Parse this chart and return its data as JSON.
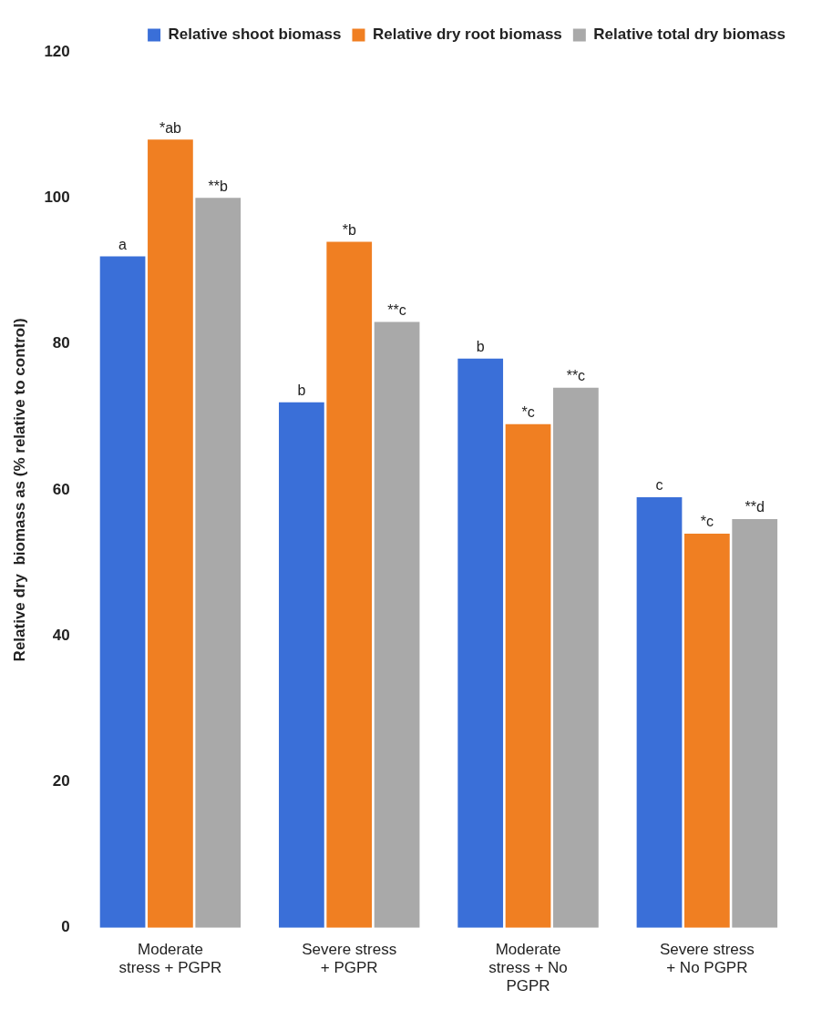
{
  "chart_data": {
    "type": "bar",
    "ylabel": "Relative dry  biomass as (% relative to control)",
    "categories": [
      "Moderate stress + PGPR",
      "Severe stress + PGPR",
      "Moderate stress + No PGPR",
      "Severe stress + No PGPR"
    ],
    "series": [
      {
        "name": "Relative shoot biomass",
        "color": "#3a6fd8",
        "values": [
          92,
          72,
          78,
          59
        ],
        "value_labels": [
          "a",
          "b",
          "b",
          "c"
        ]
      },
      {
        "name": "Relative dry root biomass",
        "color": "#f07f22",
        "values": [
          108,
          94,
          69,
          54
        ],
        "value_labels": [
          "*ab",
          "*b",
          "*c",
          "*c"
        ]
      },
      {
        "name": "Relative total dry biomass",
        "color": "#a9a9a9",
        "values": [
          100,
          83,
          74,
          56
        ],
        "value_labels": [
          "**b",
          "**c",
          "**c",
          "**d"
        ]
      }
    ],
    "ylim": [
      0,
      120
    ],
    "yticks": [
      0,
      20,
      40,
      60,
      80,
      100,
      120
    ],
    "grid": false,
    "legend": "top right"
  }
}
